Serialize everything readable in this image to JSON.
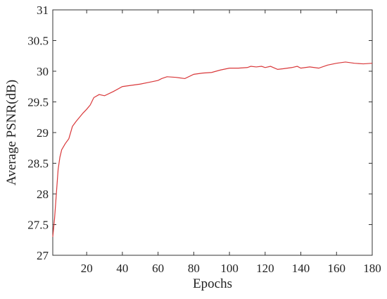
{
  "chart_data": {
    "type": "line",
    "xlabel": "Epochs",
    "ylabel": "Average PSNR(dB)",
    "x": [
      1,
      2,
      3,
      4,
      5,
      6,
      8,
      10,
      12,
      14,
      16,
      18,
      20,
      22,
      24,
      27,
      30,
      35,
      40,
      45,
      50,
      55,
      60,
      62,
      65,
      70,
      75,
      80,
      85,
      90,
      95,
      100,
      105,
      110,
      112,
      115,
      118,
      120,
      123,
      127,
      130,
      135,
      138,
      140,
      145,
      150,
      155,
      160,
      165,
      170,
      175,
      180
    ],
    "series": [
      {
        "color": "#d9383a",
        "values": [
          27.3,
          27.6,
          28.0,
          28.4,
          28.6,
          28.72,
          28.82,
          28.9,
          29.1,
          29.18,
          29.25,
          29.32,
          29.38,
          29.45,
          29.57,
          29.62,
          29.6,
          29.67,
          29.75,
          29.77,
          29.79,
          29.82,
          29.85,
          29.88,
          29.91,
          29.9,
          29.88,
          29.95,
          29.97,
          29.98,
          30.02,
          30.05,
          30.05,
          30.06,
          30.08,
          30.07,
          30.08,
          30.06,
          30.08,
          30.03,
          30.04,
          30.06,
          30.08,
          30.05,
          30.07,
          30.05,
          30.1,
          30.13,
          30.15,
          30.13,
          30.12,
          30.13
        ]
      }
    ],
    "xlim": [
      1,
      180
    ],
    "xticks": [
      20,
      40,
      60,
      80,
      100,
      120,
      140,
      160,
      180
    ],
    "ylim": [
      27,
      31
    ],
    "yticks": [
      27,
      27.5,
      28,
      28.5,
      29,
      29.5,
      30,
      30.5,
      31
    ]
  }
}
